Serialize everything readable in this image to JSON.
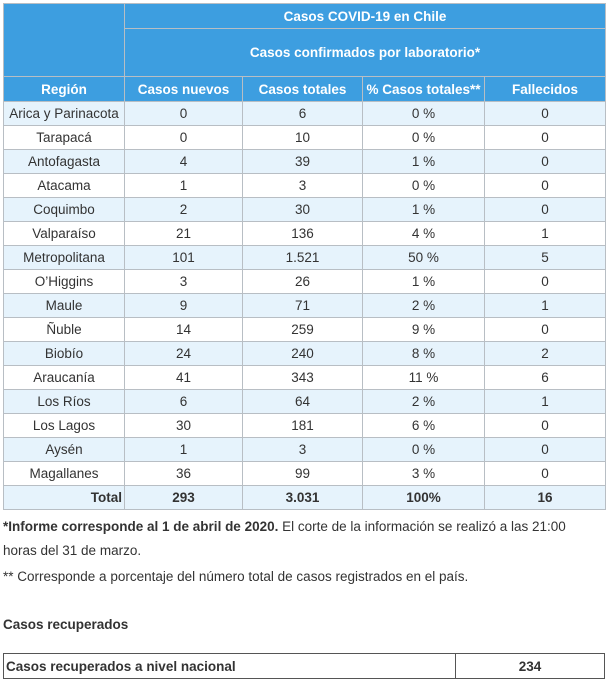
{
  "table": {
    "title": "Casos COVID-19 en Chile",
    "subtitle": "Casos confirmados por laboratorio*",
    "headers": {
      "region": "Región",
      "new": "Casos nuevos",
      "total": "Casos totales",
      "pct": "% Casos totales**",
      "deaths": "Fallecidos"
    },
    "rows": [
      {
        "region": "Arica y Parinacota",
        "new": "0",
        "total": "6",
        "pct": "0 %",
        "deaths": "0"
      },
      {
        "region": "Tarapacá",
        "new": "0",
        "total": "10",
        "pct": "0 %",
        "deaths": "0"
      },
      {
        "region": "Antofagasta",
        "new": "4",
        "total": "39",
        "pct": "1 %",
        "deaths": "0"
      },
      {
        "region": "Atacama",
        "new": "1",
        "total": "3",
        "pct": "0 %",
        "deaths": "0"
      },
      {
        "region": "Coquimbo",
        "new": "2",
        "total": "30",
        "pct": "1 %",
        "deaths": "0"
      },
      {
        "region": "Valparaíso",
        "new": "21",
        "total": "136",
        "pct": "4 %",
        "deaths": "1"
      },
      {
        "region": "Metropolitana",
        "new": "101",
        "total": "1.521",
        "pct": "50 %",
        "deaths": "5"
      },
      {
        "region": "O’Higgins",
        "new": "3",
        "total": "26",
        "pct": "1 %",
        "deaths": "0"
      },
      {
        "region": "Maule",
        "new": "9",
        "total": "71",
        "pct": "2 %",
        "deaths": "1"
      },
      {
        "region": "Ñuble",
        "new": "14",
        "total": "259",
        "pct": "9 %",
        "deaths": "0"
      },
      {
        "region": "Biobío",
        "new": "24",
        "total": "240",
        "pct": "8 %",
        "deaths": "2"
      },
      {
        "region": "Araucanía",
        "new": "41",
        "total": "343",
        "pct": "11 %",
        "deaths": "6"
      },
      {
        "region": "Los Ríos",
        "new": "6",
        "total": "64",
        "pct": "2 %",
        "deaths": "1"
      },
      {
        "region": "Los Lagos",
        "new": "30",
        "total": "181",
        "pct": "6 %",
        "deaths": "0"
      },
      {
        "region": "Aysén",
        "new": "1",
        "total": "3",
        "pct": "0 %",
        "deaths": "0"
      },
      {
        "region": "Magallanes",
        "new": "36",
        "total": "99",
        "pct": "3 %",
        "deaths": "0"
      }
    ],
    "total_row": {
      "label": "Total",
      "new": "293",
      "total": "3.031",
      "pct": "100%",
      "deaths": "16"
    }
  },
  "notes": {
    "note1_bold": "*Informe corresponde al 1 de abril de 2020.",
    "note1_rest": " El corte de la información se realizó a las 21:00 horas del 31 de marzo.",
    "note2": "** Corresponde a porcentaje del número total de casos registrados en el país."
  },
  "recovered": {
    "section_title": "Casos recuperados",
    "label": "Casos recuperados a nivel nacional",
    "value": "234"
  }
}
